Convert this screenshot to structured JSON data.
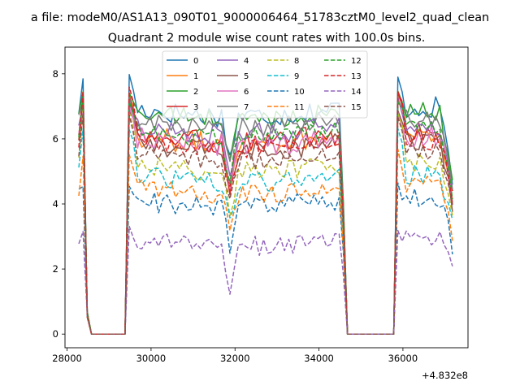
{
  "figure": {
    "suptitle": "a file: modeM0/AS1A13_090T01_9000006464_51783cztM0_level2_quad_clean",
    "title": "Quadrant 2 module wise count rates with 100.0s bins.",
    "offset_label": "+4.832e8"
  },
  "chart_data": {
    "type": "line",
    "title": "Quadrant 2 module wise count rates with 100.0s bins.",
    "xlabel": "",
    "ylabel": "",
    "x_offset": 483200000,
    "xlim": [
      27950,
      37550
    ],
    "ylim": [
      -0.42,
      8.82
    ],
    "xticks": [
      28000,
      30000,
      32000,
      34000,
      36000
    ],
    "xtick_labels": [
      "28000",
      "30000",
      "32000",
      "34000",
      "36000"
    ],
    "yticks": [
      0,
      2,
      4,
      6,
      8
    ],
    "ytick_labels": [
      "0",
      "2",
      "4",
      "6",
      "8"
    ],
    "grid": false,
    "legend_position": "top-center",
    "legend_columns": 4,
    "series": [
      {
        "name": "0",
        "color": "#1f77b4",
        "style": "solid",
        "base": 6.95,
        "spike": 8.05,
        "noise": 0.35
      },
      {
        "name": "1",
        "color": "#ff7f0e",
        "style": "solid",
        "base": 6.1,
        "spike": 7.45,
        "noise": 0.35
      },
      {
        "name": "2",
        "color": "#2ca02c",
        "style": "solid",
        "base": 6.85,
        "spike": 7.55,
        "noise": 0.3
      },
      {
        "name": "3",
        "color": "#d62728",
        "style": "solid",
        "base": 6.15,
        "spike": 7.5,
        "noise": 0.35
      },
      {
        "name": "4",
        "color": "#9467bd",
        "style": "solid",
        "base": 6.4,
        "spike": 7.3,
        "noise": 0.35
      },
      {
        "name": "5",
        "color": "#8c564b",
        "style": "solid",
        "base": 5.9,
        "spike": 7.1,
        "noise": 0.35
      },
      {
        "name": "6",
        "color": "#e377c2",
        "style": "solid",
        "base": 6.05,
        "spike": 7.0,
        "noise": 0.35
      },
      {
        "name": "7",
        "color": "#7f7f7f",
        "style": "solid",
        "base": 6.6,
        "spike": 7.35,
        "noise": 0.3
      },
      {
        "name": "8",
        "color": "#bcbd22",
        "style": "dashed",
        "base": 5.25,
        "spike": 6.9,
        "noise": 0.3
      },
      {
        "name": "9",
        "color": "#17becf",
        "style": "dashed",
        "base": 4.9,
        "spike": 6.4,
        "noise": 0.3
      },
      {
        "name": "10",
        "color": "#1f77b4",
        "style": "dashed",
        "base": 4.15,
        "spike": 4.7,
        "noise": 0.35
      },
      {
        "name": "11",
        "color": "#ff7f0e",
        "style": "dashed",
        "base": 4.55,
        "spike": 5.7,
        "noise": 0.3
      },
      {
        "name": "12",
        "color": "#2ca02c",
        "style": "dashed",
        "base": 6.3,
        "spike": 7.35,
        "noise": 0.3
      },
      {
        "name": "13",
        "color": "#d62728",
        "style": "dashed",
        "base": 5.95,
        "spike": 7.6,
        "noise": 0.3
      },
      {
        "name": "14",
        "color": "#9467bd",
        "style": "dashed",
        "base": 2.95,
        "spike": 3.35,
        "noise": 0.3
      },
      {
        "name": "15",
        "color": "#8c564b",
        "style": "dashed",
        "base": 5.6,
        "spike": 6.8,
        "noise": 0.3
      }
    ],
    "segments": [
      {
        "x_start": 28280,
        "x_end": 28480,
        "type": "active"
      },
      {
        "x_start": 28480,
        "x_end": 29480,
        "type": "zero"
      },
      {
        "x_start": 29480,
        "x_end": 34580,
        "type": "active"
      },
      {
        "x_start": 34580,
        "x_end": 35830,
        "type": "zero"
      },
      {
        "x_start": 35830,
        "x_end": 37180,
        "type": "active"
      }
    ]
  }
}
